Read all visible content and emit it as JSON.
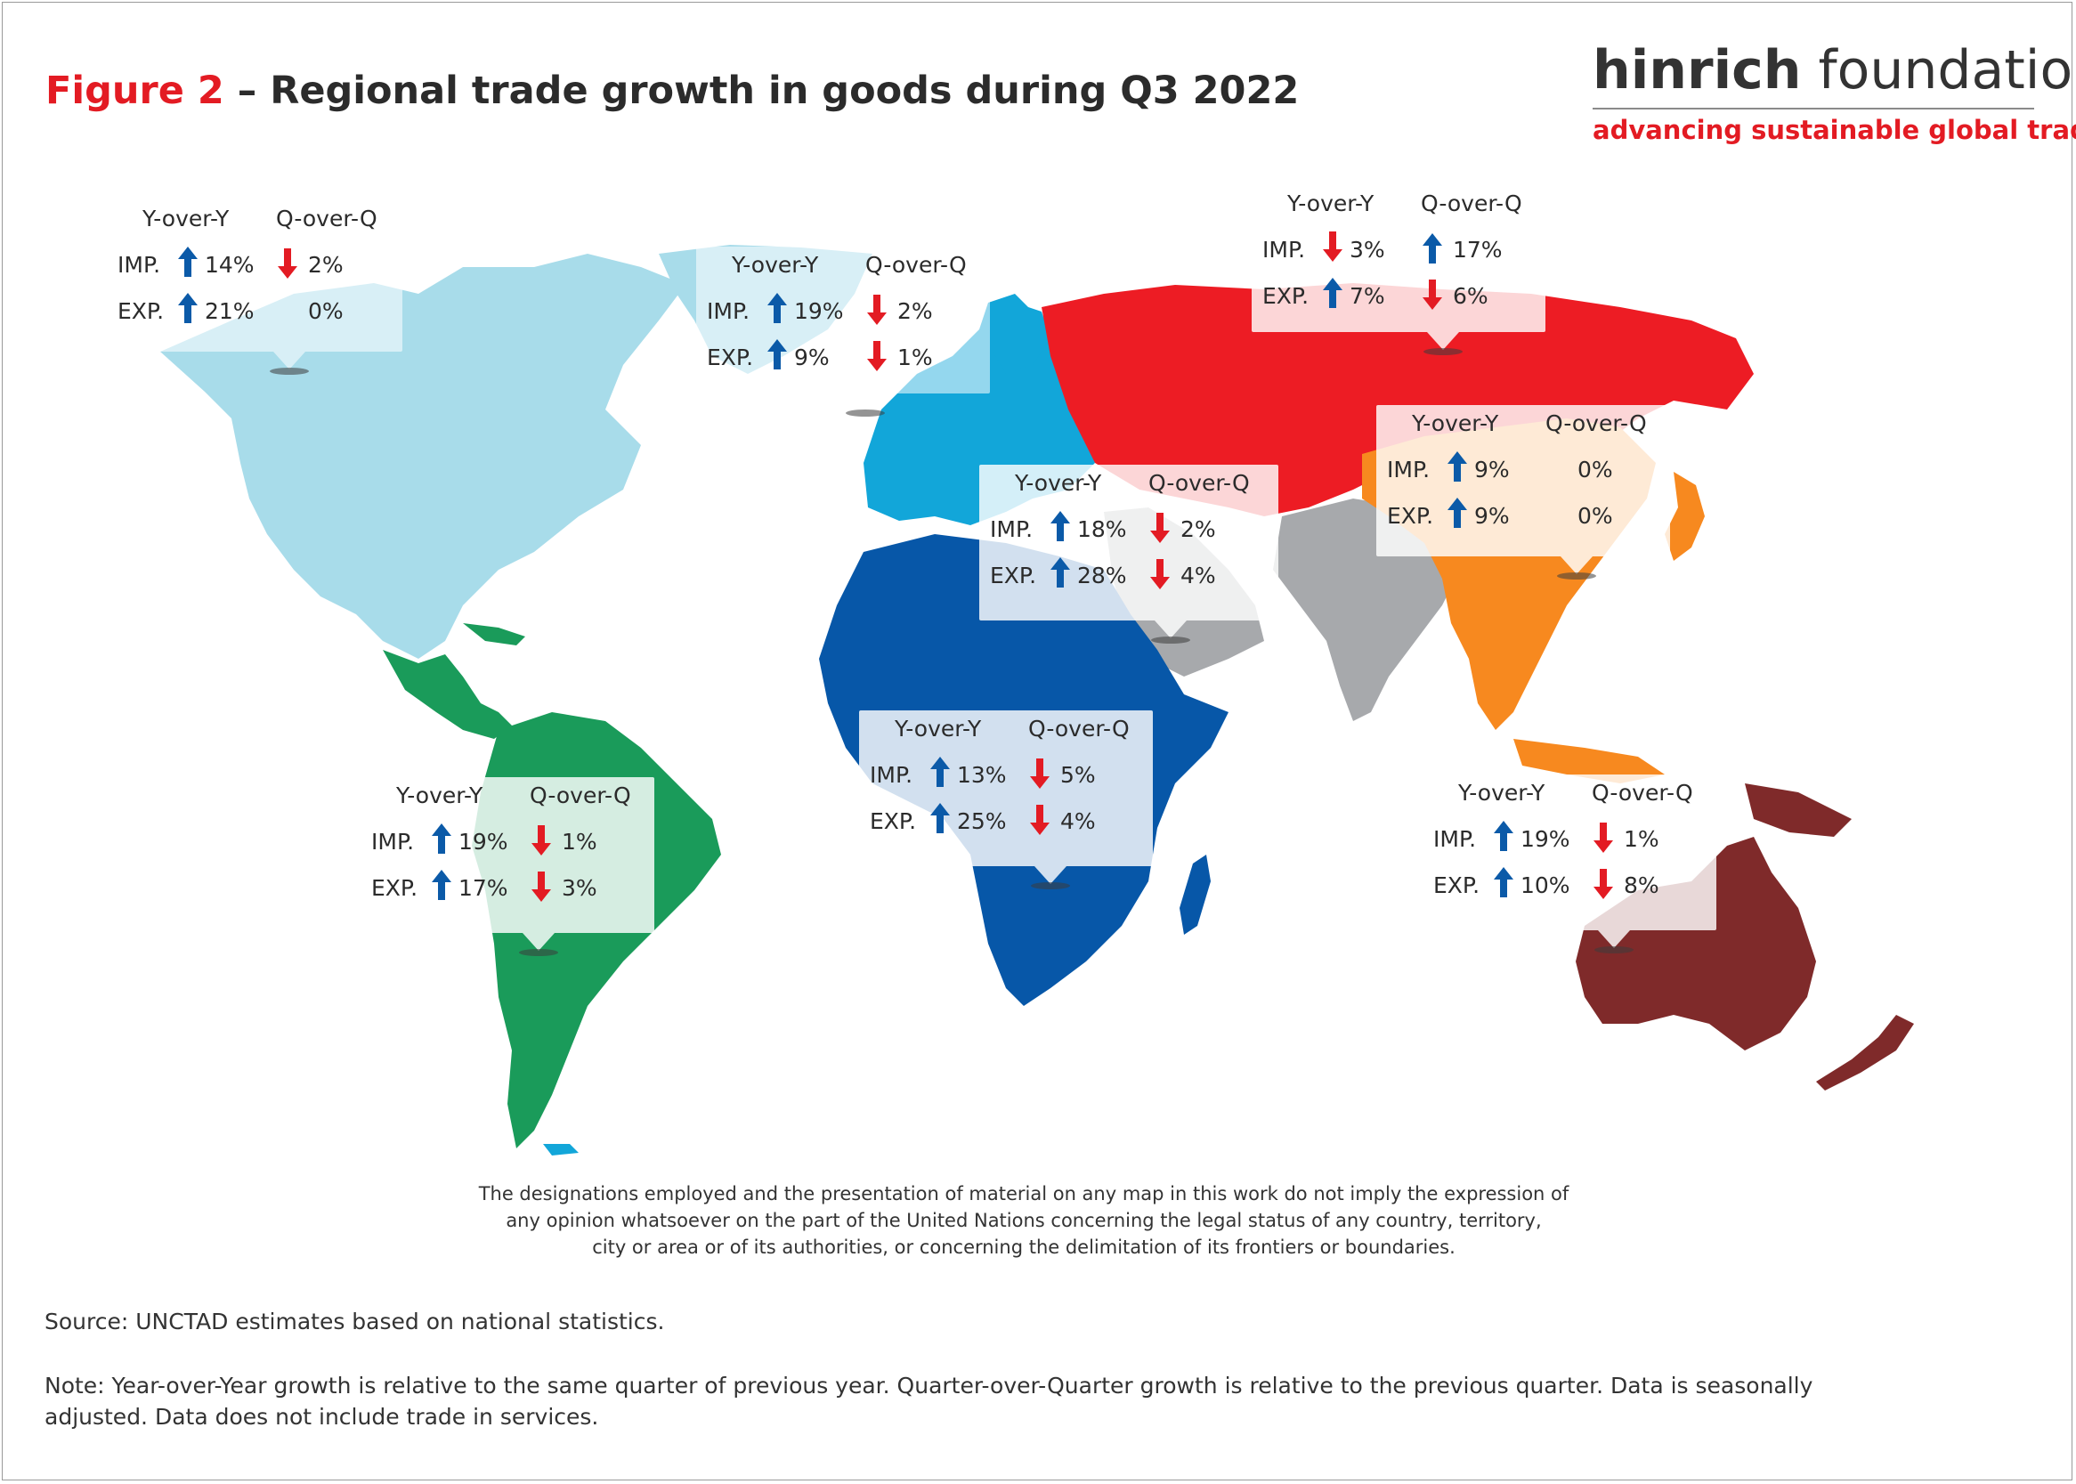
{
  "title": {
    "prefix": "Figure 2",
    "rest": " – Regional trade growth in goods during Q3 2022"
  },
  "logo": {
    "name_bold": "hinrich",
    "name_light": " foundation",
    "tagline": "advancing sustainable global trade"
  },
  "colors": {
    "north_america": "#a8dcea",
    "europe": "#12a6d9",
    "cis": "#ed1c24",
    "east_asia": "#f7891f",
    "west_south_asia": "#a7a9ac",
    "africa": "#0757a8",
    "latin_america": "#1a9b5a",
    "oceania": "#7f2a2a",
    "arrow_up": "#0b5aa8",
    "arrow_down": "#e31b23"
  },
  "regions": [
    {
      "id": "north-america",
      "yoy_header": "Y-over-Y",
      "qoq_header": "Q-over-Q",
      "imp_label": "IMP.",
      "imp_yoy": "14%",
      "imp_yoy_dir": "up",
      "imp_qoq": "2%",
      "imp_qoq_dir": "down",
      "exp_label": "EXP.",
      "exp_yoy": "21%",
      "exp_yoy_dir": "up",
      "exp_qoq": "0%",
      "exp_qoq_dir": "none"
    },
    {
      "id": "europe",
      "yoy_header": "Y-over-Y",
      "qoq_header": "Q-over-Q",
      "imp_label": "IMP.",
      "imp_yoy": "19%",
      "imp_yoy_dir": "up",
      "imp_qoq": "2%",
      "imp_qoq_dir": "down",
      "exp_label": "EXP.",
      "exp_yoy": "9%",
      "exp_yoy_dir": "up",
      "exp_qoq": "1%",
      "exp_qoq_dir": "down"
    },
    {
      "id": "cis",
      "yoy_header": "Y-over-Y",
      "qoq_header": "Q-over-Q",
      "imp_label": "IMP.",
      "imp_yoy": "3%",
      "imp_yoy_dir": "down",
      "imp_qoq": "17%",
      "imp_qoq_dir": "up",
      "exp_label": "EXP.",
      "exp_yoy": "7%",
      "exp_yoy_dir": "up",
      "exp_qoq": "6%",
      "exp_qoq_dir": "down"
    },
    {
      "id": "east-asia",
      "yoy_header": "Y-over-Y",
      "qoq_header": "Q-over-Q",
      "imp_label": "IMP.",
      "imp_yoy": "9%",
      "imp_yoy_dir": "up",
      "imp_qoq": "0%",
      "imp_qoq_dir": "none",
      "exp_label": "EXP.",
      "exp_yoy": "9%",
      "exp_yoy_dir": "up",
      "exp_qoq": "0%",
      "exp_qoq_dir": "none"
    },
    {
      "id": "west-asia",
      "yoy_header": "Y-over-Y",
      "qoq_header": "Q-over-Q",
      "imp_label": "IMP.",
      "imp_yoy": "18%",
      "imp_yoy_dir": "up",
      "imp_qoq": "2%",
      "imp_qoq_dir": "down",
      "exp_label": "EXP.",
      "exp_yoy": "28%",
      "exp_yoy_dir": "up",
      "exp_qoq": "4%",
      "exp_qoq_dir": "down"
    },
    {
      "id": "africa",
      "yoy_header": "Y-over-Y",
      "qoq_header": "Q-over-Q",
      "imp_label": "IMP.",
      "imp_yoy": "13%",
      "imp_yoy_dir": "up",
      "imp_qoq": "5%",
      "imp_qoq_dir": "down",
      "exp_label": "EXP.",
      "exp_yoy": "25%",
      "exp_yoy_dir": "up",
      "exp_qoq": "4%",
      "exp_qoq_dir": "down"
    },
    {
      "id": "latin-america",
      "yoy_header": "Y-over-Y",
      "qoq_header": "Q-over-Q",
      "imp_label": "IMP.",
      "imp_yoy": "19%",
      "imp_yoy_dir": "up",
      "imp_qoq": "1%",
      "imp_qoq_dir": "down",
      "exp_label": "EXP.",
      "exp_yoy": "17%",
      "exp_yoy_dir": "up",
      "exp_qoq": "3%",
      "exp_qoq_dir": "down"
    },
    {
      "id": "oceania",
      "yoy_header": "Y-over-Y",
      "qoq_header": "Q-over-Q",
      "imp_label": "IMP.",
      "imp_yoy": "19%",
      "imp_yoy_dir": "up",
      "imp_qoq": "1%",
      "imp_qoq_dir": "down",
      "exp_label": "EXP.",
      "exp_yoy": "10%",
      "exp_yoy_dir": "up",
      "exp_qoq": "8%",
      "exp_qoq_dir": "down"
    }
  ],
  "disclaimer": [
    "The designations employed and the presentation of material on any map in this work do not imply the expression of",
    "any opinion whatsoever on the part of the United Nations concerning the legal status of any country, territory,",
    "city or area or of its authorities, or concerning the delimitation of its frontiers or boundaries."
  ],
  "source": "Source: UNCTAD estimates based on national statistics.",
  "note": [
    "Note: Year-over-Year growth is relative to the same quarter of previous year. Quarter-over-Quarter growth is relative to the previous quarter. Data is seasonally",
    "adjusted. Data does not include trade in services."
  ]
}
